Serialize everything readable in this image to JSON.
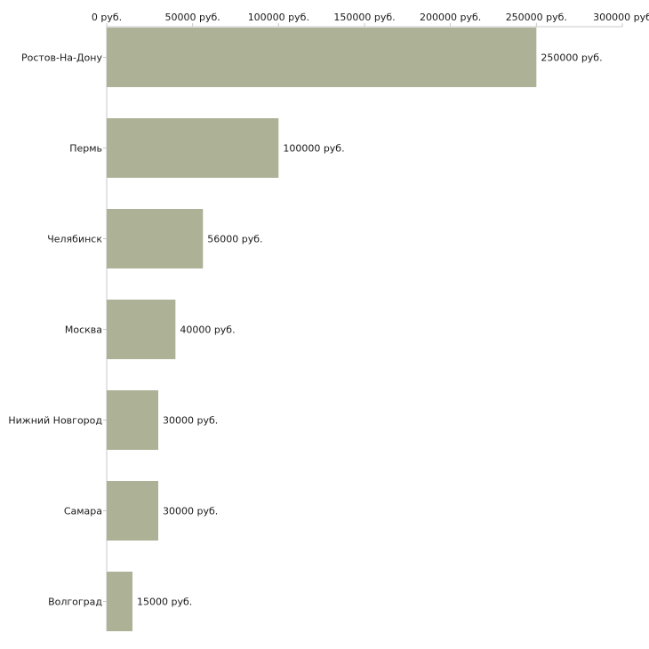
{
  "chart_data": {
    "type": "bar",
    "orientation": "horizontal",
    "categories": [
      "Ростов-На-Дону",
      "Пермь",
      "Челябинск",
      "Москва",
      "Нижний Новгород",
      "Самара",
      "Волгоград"
    ],
    "values": [
      250000,
      100000,
      56000,
      40000,
      30000,
      30000,
      15000
    ],
    "value_labels": [
      "250000 руб.",
      "100000 руб.",
      "56000 руб.",
      "40000 руб.",
      "30000 руб.",
      "30000 руб.",
      "15000 руб."
    ],
    "x_ticks": [
      0,
      50000,
      100000,
      150000,
      200000,
      250000,
      300000
    ],
    "x_tick_labels": [
      "0 руб.",
      "50000 руб.",
      "100000 руб.",
      "150000 руб.",
      "200000 руб.",
      "250000 руб.",
      "300000 руб"
    ],
    "xlim": [
      0,
      300000
    ],
    "title": "",
    "xlabel": "",
    "ylabel": "",
    "x_axis_position": "top",
    "grid": false,
    "bar_color": "#adb297",
    "axis_color": "#c8c8c8"
  }
}
